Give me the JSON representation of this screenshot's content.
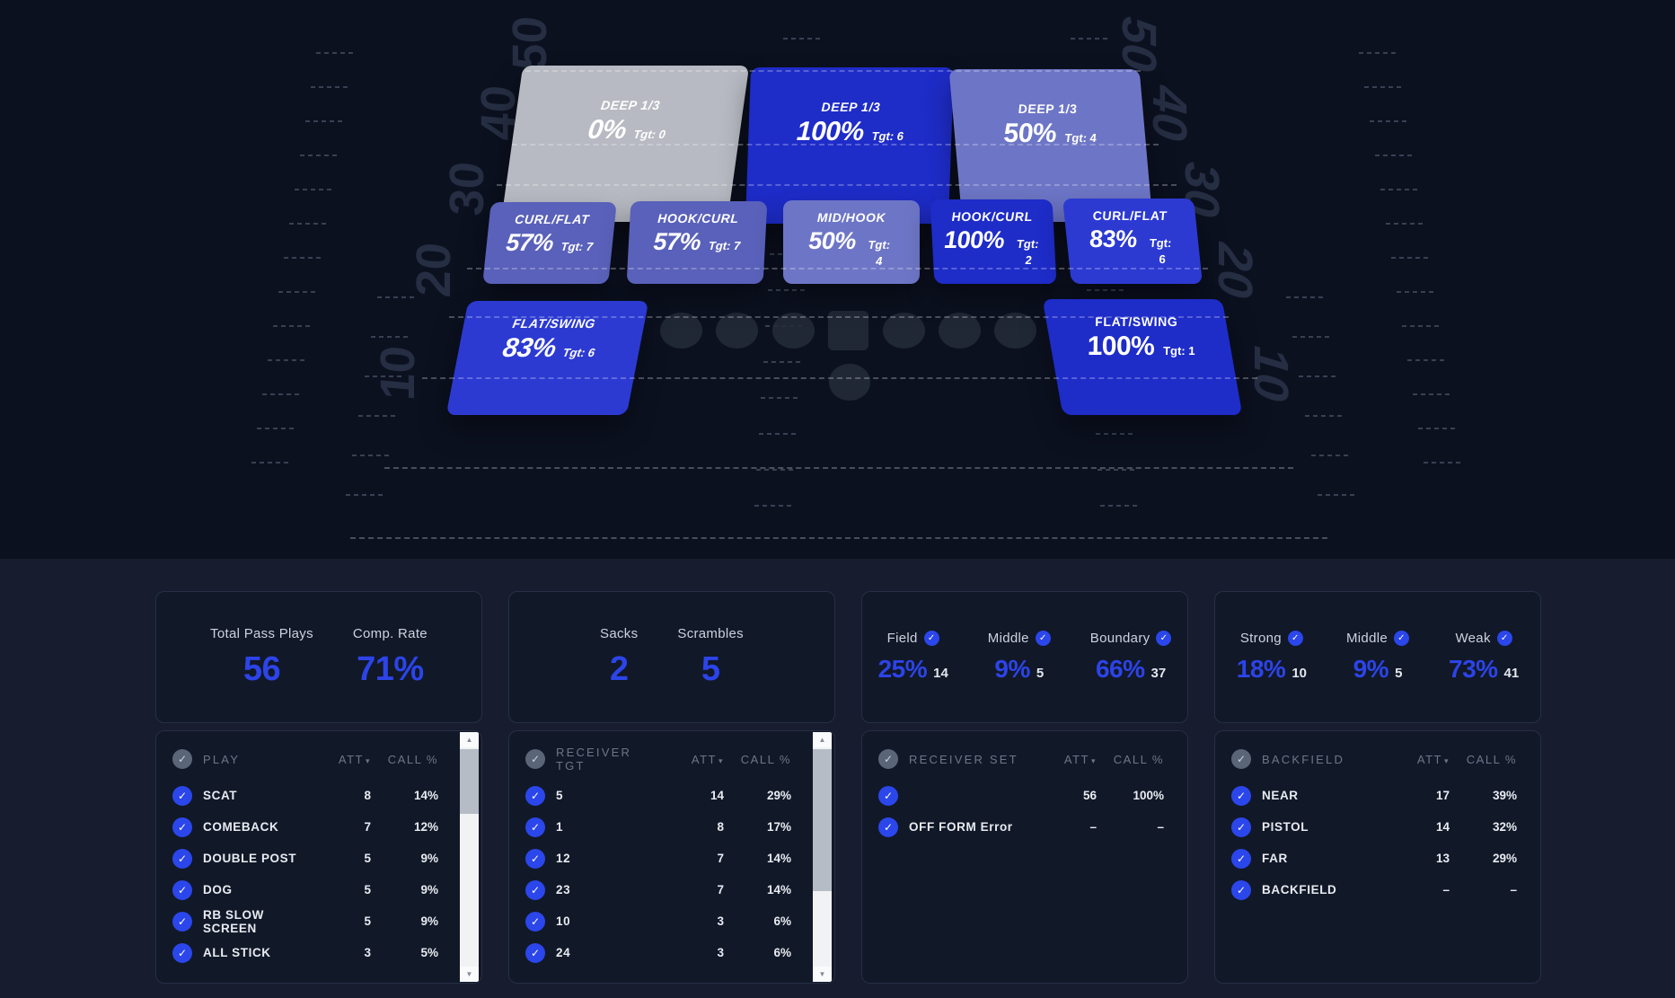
{
  "icons": {
    "check": "✓",
    "sort_desc": "▾",
    "scroll_up": "▲",
    "scroll_down": "▼"
  },
  "colors": {
    "accent_blue": "#2c44e8",
    "zone_100": "#1e2cc8",
    "zone_83": "#2c3ad2",
    "zone_57": "#5961ba",
    "zone_50": "#6d76c6",
    "zone_0": "#b7bac2",
    "field_bg": "#0c1120",
    "panel_bg": "#171d2e",
    "card_bg": "#111828"
  },
  "field": {
    "yard_numbers_left": [
      "50",
      "40",
      "30",
      "20",
      "10"
    ],
    "yard_numbers_right": [
      "50",
      "40",
      "30",
      "20",
      "10"
    ],
    "zones": [
      {
        "label": "DEEP 1/3",
        "pct": "0%",
        "tgt": "Tgt: 0",
        "tone": "gray"
      },
      {
        "label": "DEEP 1/3",
        "pct": "100%",
        "tgt": "Tgt: 6",
        "tone": "blue-100"
      },
      {
        "label": "DEEP 1/3",
        "pct": "50%",
        "tgt": "Tgt: 4",
        "tone": "blue-50"
      },
      {
        "label": "CURL/FLAT",
        "pct": "57%",
        "tgt": "Tgt: 7",
        "tone": "blue-57"
      },
      {
        "label": "HOOK/CURL",
        "pct": "57%",
        "tgt": "Tgt: 7",
        "tone": "blue-57"
      },
      {
        "label": "MID/HOOK",
        "pct": "50%",
        "tgt": "Tgt: 4",
        "tone": "blue-50"
      },
      {
        "label": "HOOK/CURL",
        "pct": "100%",
        "tgt": "Tgt: 2",
        "tone": "blue-100"
      },
      {
        "label": "CURL/FLAT",
        "pct": "83%",
        "tgt": "Tgt: 6",
        "tone": "blue-83"
      },
      {
        "label": "FLAT/SWING",
        "pct": "83%",
        "tgt": "Tgt: 6",
        "tone": "blue-83"
      },
      {
        "label": "FLAT/SWING",
        "pct": "100%",
        "tgt": "Tgt: 1",
        "tone": "blue-100"
      }
    ]
  },
  "stats_cards": [
    {
      "items": [
        {
          "label": "Total Pass Plays",
          "value": "56"
        },
        {
          "label": "Comp. Rate",
          "value": "71%"
        }
      ]
    },
    {
      "items": [
        {
          "label": "Sacks",
          "value": "2"
        },
        {
          "label": "Scrambles",
          "value": "5"
        }
      ]
    },
    {
      "items": [
        {
          "label": "Field",
          "value": "25%",
          "count": "14"
        },
        {
          "label": "Middle",
          "value": "9%",
          "count": "5"
        },
        {
          "label": "Boundary",
          "value": "66%",
          "count": "37"
        }
      ]
    },
    {
      "items": [
        {
          "label": "Strong",
          "value": "18%",
          "count": "10"
        },
        {
          "label": "Middle",
          "value": "9%",
          "count": "5"
        },
        {
          "label": "Weak",
          "value": "73%",
          "count": "41"
        }
      ]
    }
  ],
  "tables": [
    {
      "title": "PLAY",
      "col_att": "ATT",
      "col_call": "CALL %",
      "rows": [
        {
          "name": "SCAT",
          "att": "8",
          "call": "14%"
        },
        {
          "name": "COMEBACK",
          "att": "7",
          "call": "12%"
        },
        {
          "name": "DOUBLE POST",
          "att": "5",
          "call": "9%"
        },
        {
          "name": "DOG",
          "att": "5",
          "call": "9%"
        },
        {
          "name": "RB SLOW SCREEN",
          "att": "5",
          "call": "9%"
        },
        {
          "name": "ALL STICK",
          "att": "3",
          "call": "5%"
        }
      ]
    },
    {
      "title": "RECEIVER TGT",
      "col_att": "ATT",
      "col_call": "CALL %",
      "rows": [
        {
          "name": "5",
          "att": "14",
          "call": "29%"
        },
        {
          "name": "1",
          "att": "8",
          "call": "17%"
        },
        {
          "name": "12",
          "att": "7",
          "call": "14%"
        },
        {
          "name": "23",
          "att": "7",
          "call": "14%"
        },
        {
          "name": "10",
          "att": "3",
          "call": "6%"
        },
        {
          "name": "24",
          "att": "3",
          "call": "6%"
        }
      ]
    },
    {
      "title": "RECEIVER SET",
      "col_att": "ATT",
      "col_call": "CALL %",
      "rows": [
        {
          "name": "",
          "att": "56",
          "call": "100%"
        },
        {
          "name": "OFF FORM Error",
          "att": "–",
          "call": "–"
        }
      ]
    },
    {
      "title": "BACKFIELD",
      "col_att": "ATT",
      "col_call": "CALL %",
      "rows": [
        {
          "name": "NEAR",
          "att": "17",
          "call": "39%"
        },
        {
          "name": "PISTOL",
          "att": "14",
          "call": "32%"
        },
        {
          "name": "FAR",
          "att": "13",
          "call": "29%"
        },
        {
          "name": "BACKFIELD",
          "att": "–",
          "call": "–"
        }
      ]
    }
  ]
}
